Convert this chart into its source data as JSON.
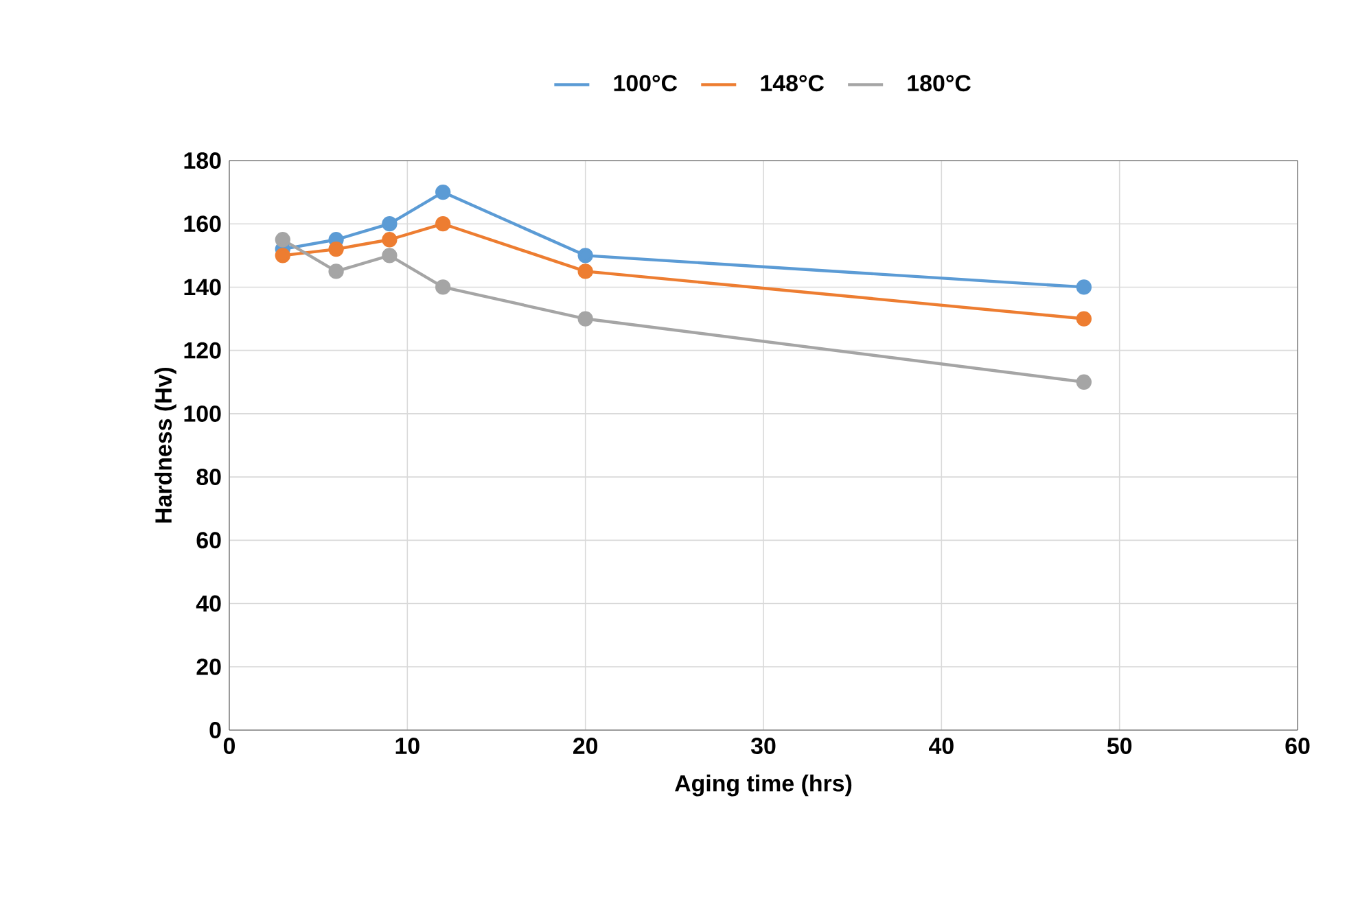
{
  "chart_data": {
    "type": "line",
    "xlabel": "Aging time (hrs)",
    "ylabel": "Hardness (Hv)",
    "x": [
      3,
      6,
      9,
      12,
      20,
      48
    ],
    "series": [
      {
        "name": "100°C",
        "color": "#5b9bd5",
        "values": [
          152,
          155,
          160,
          170,
          150,
          140
        ]
      },
      {
        "name": "148°C",
        "color": "#ed7d31",
        "values": [
          150,
          152,
          155,
          160,
          145,
          130
        ]
      },
      {
        "name": "180°C",
        "color": "#a5a5a5",
        "values": [
          155,
          145,
          150,
          140,
          130,
          110
        ]
      }
    ],
    "xlim": [
      0,
      60
    ],
    "ylim": [
      0,
      180
    ],
    "xticks": [
      0,
      10,
      20,
      30,
      40,
      50,
      60
    ],
    "yticks": [
      0,
      20,
      40,
      60,
      80,
      100,
      120,
      140,
      160,
      180
    ],
    "grid": true,
    "legend": "top",
    "marker": "circle",
    "line_style": "solid"
  }
}
